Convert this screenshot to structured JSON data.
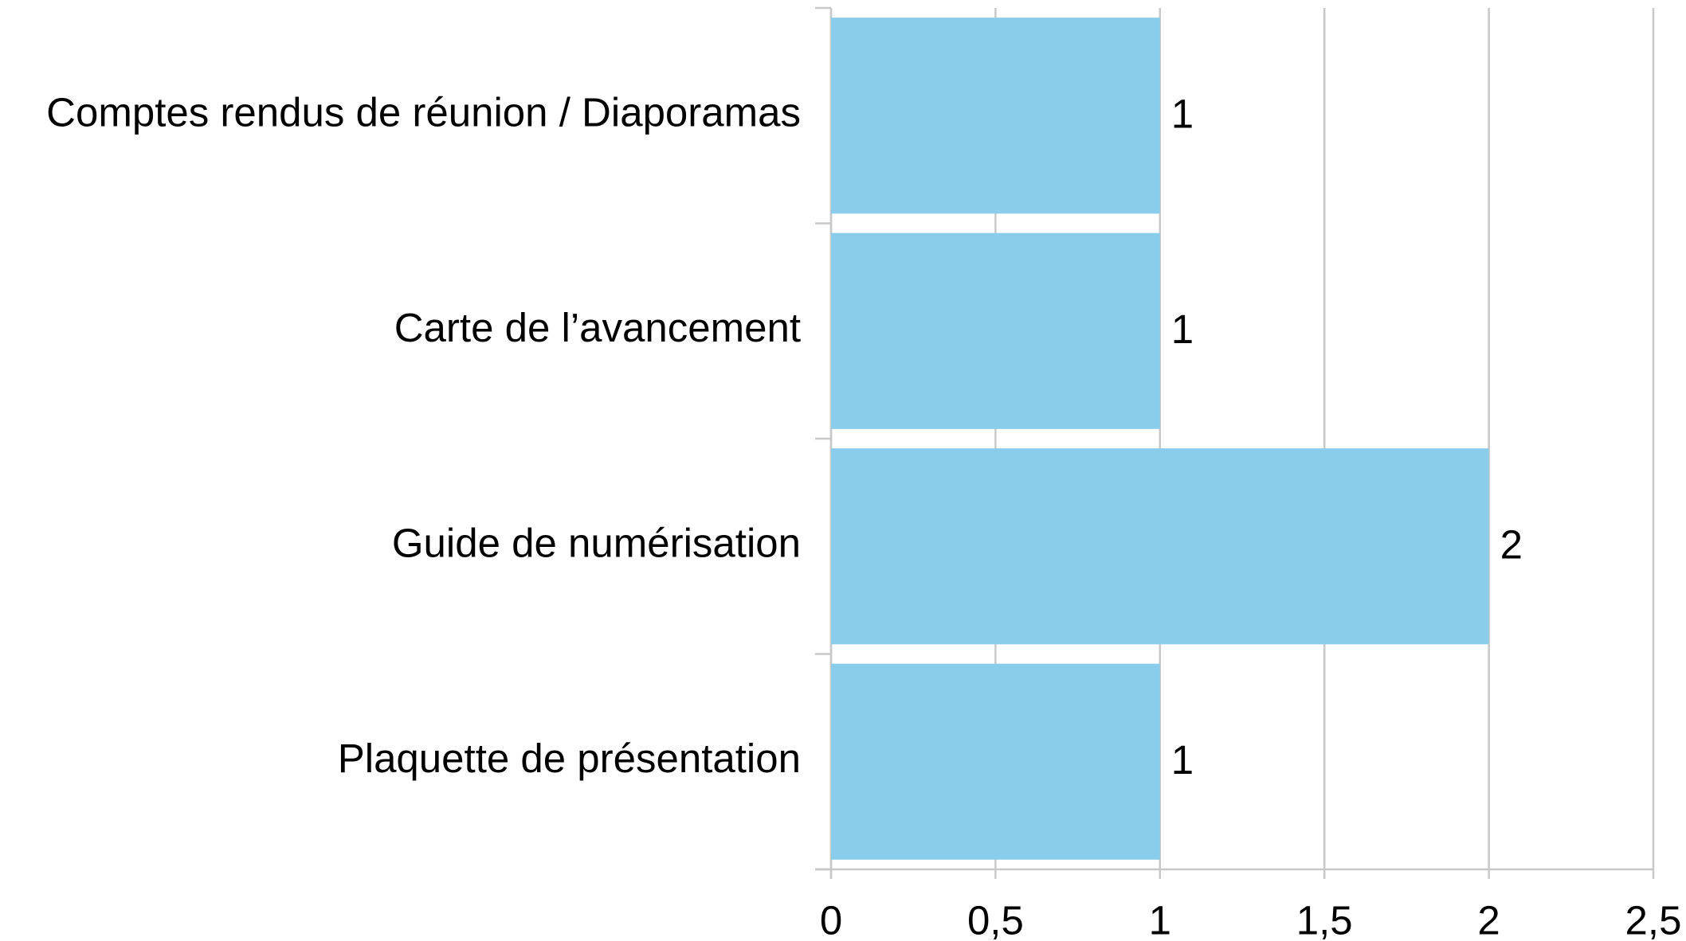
{
  "chart_data": {
    "type": "bar",
    "orientation": "horizontal",
    "categories": [
      "Comptes rendus de réunion / Diaporamas",
      "Carte de l’avancement",
      "Guide de numérisation",
      "Plaquette de présentation"
    ],
    "values": [
      1,
      1,
      2,
      1
    ],
    "color": "#89cdea",
    "xlim": [
      0,
      2.5
    ],
    "xticks": [
      0,
      {
        "value": 0.5,
        "label": "0,5"
      },
      1,
      {
        "value": 1.5,
        "label": "1,5"
      },
      2,
      {
        "value": 2.5,
        "label": "2,5"
      }
    ],
    "grid": true
  }
}
